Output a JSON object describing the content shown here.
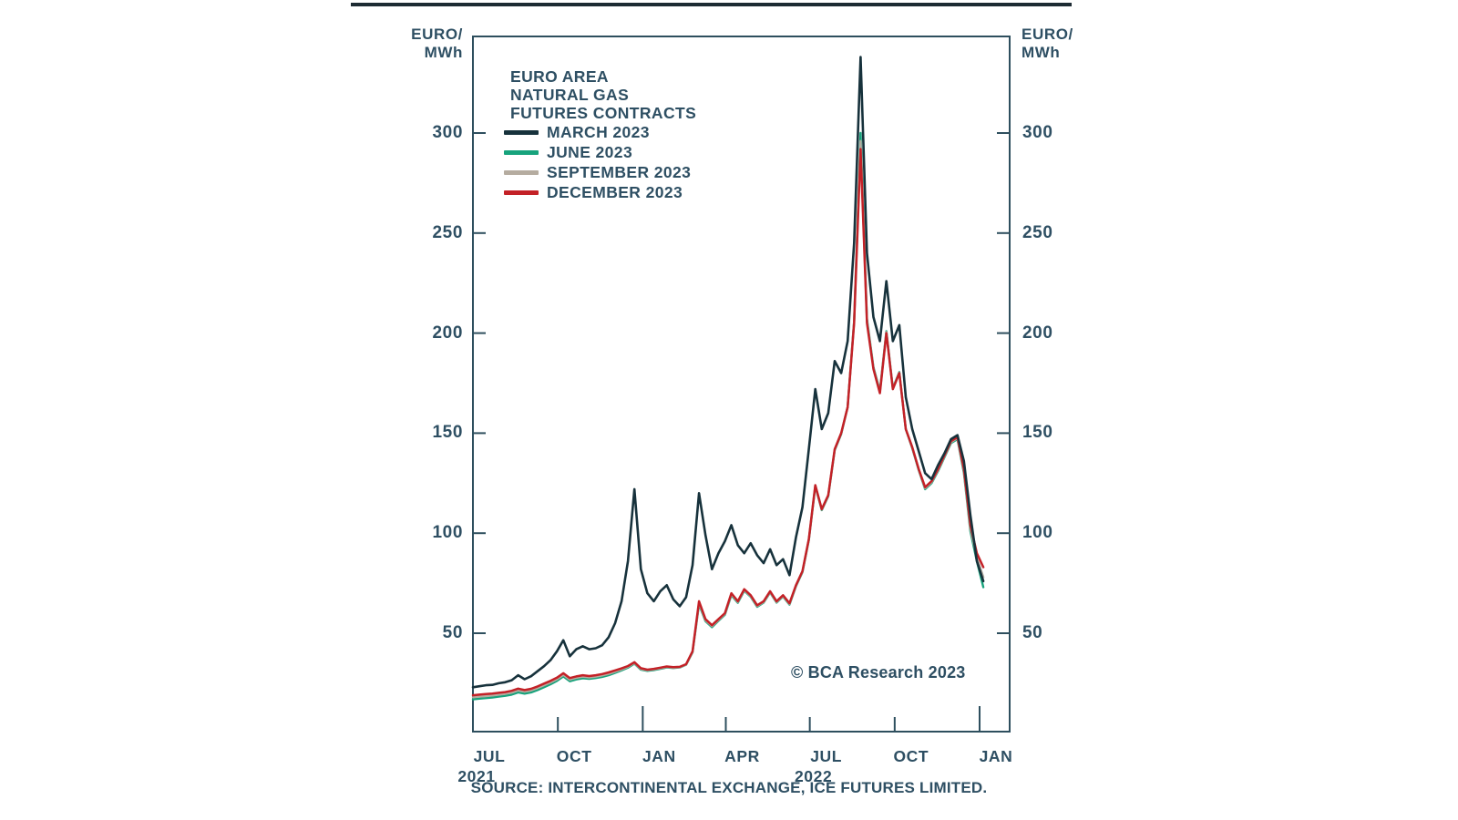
{
  "chart_data": {
    "type": "line",
    "title_lines": [
      "EURO AREA",
      "NATURAL GAS",
      "FUTURES CONTRACTS"
    ],
    "y_unit_line1": "EURO/",
    "y_unit_line2": "MWh",
    "y_ticks": [
      50,
      100,
      150,
      200,
      250,
      300
    ],
    "ylim": [
      0,
      348
    ],
    "x_range_days": [
      0,
      553
    ],
    "sample_interval_days": 7,
    "x_ticks": [
      {
        "label": "JUL",
        "day": 0,
        "major": false
      },
      {
        "label": "OCT",
        "day": 92,
        "major": false
      },
      {
        "label": "JAN",
        "day": 184,
        "major": true
      },
      {
        "label": "APR",
        "day": 274,
        "major": false
      },
      {
        "label": "JUL",
        "day": 365,
        "major": false
      },
      {
        "label": "OCT",
        "day": 457,
        "major": false
      },
      {
        "label": "JAN",
        "day": 549,
        "major": true
      }
    ],
    "year_labels": [
      {
        "text": "2021",
        "day": 0
      },
      {
        "text": "2022",
        "day": 365
      }
    ],
    "grid": false,
    "legend_position": "top-left-inside",
    "axis_color": "#2e4f5e",
    "text_color": "#2e4f63",
    "draw_order": [
      1,
      2,
      3,
      0
    ],
    "series": [
      {
        "name": "MARCH 2023",
        "color": "#17323c",
        "width": 2.6,
        "values": [
          23,
          23.5,
          24,
          24.2,
          25,
          25.5,
          26.5,
          29,
          27,
          28.5,
          31,
          33.5,
          36.5,
          41,
          46.5,
          38.5,
          42,
          43.5,
          42,
          42.5,
          44,
          48,
          55,
          66,
          86,
          122,
          82,
          70,
          66,
          71,
          74,
          67,
          63.5,
          68,
          84,
          120,
          99,
          82,
          90,
          96,
          104,
          94,
          90,
          95,
          89,
          85,
          92,
          84,
          87,
          79,
          98,
          113,
          142,
          172,
          152,
          160,
          186,
          180,
          196,
          245,
          338,
          240,
          208,
          196,
          226,
          196,
          204,
          168,
          152,
          141,
          130,
          127,
          134,
          140,
          147,
          149,
          136,
          109,
          86,
          76
        ]
      },
      {
        "name": "JUNE 2023",
        "color": "#17a37c",
        "width": 2.4,
        "values": [
          17,
          17.3,
          17.6,
          17.9,
          18.3,
          18.7,
          19.3,
          20.4,
          19.8,
          20.4,
          21.6,
          23,
          24.5,
          26.2,
          28.4,
          26,
          26.9,
          27.5,
          27.2,
          27.6,
          28.2,
          29,
          30.2,
          31.4,
          32.8,
          34.8,
          31.8,
          31.2,
          31.6,
          32.2,
          32.9,
          32.6,
          32.9,
          34.2,
          40.5,
          64.5,
          56,
          53,
          56.2,
          59.2,
          69,
          65.2,
          71.2,
          68.2,
          63.2,
          65.3,
          70.3,
          65.3,
          68.3,
          64.3,
          73.5,
          80.5,
          96.5,
          123.5,
          111.5,
          118.5,
          141.5,
          149.5,
          163,
          206,
          300,
          207,
          183,
          171,
          201,
          172.5,
          180.5,
          152,
          142.5,
          131.5,
          122,
          125,
          131,
          138,
          145,
          147,
          130,
          101,
          86,
          73
        ]
      },
      {
        "name": "SEPTEMBER 2023",
        "color": "#b5aca0",
        "width": 2.4,
        "values": [
          18,
          18.3,
          18.6,
          18.9,
          19.3,
          19.7,
          20.3,
          21.4,
          20.8,
          21.4,
          22.6,
          24,
          25.4,
          27,
          29.2,
          26.8,
          27.7,
          28.3,
          27.9,
          28.3,
          28.9,
          29.7,
          30.8,
          31.9,
          33.2,
          35.1,
          32.1,
          31.5,
          31.9,
          32.5,
          33.1,
          32.8,
          33,
          34.3,
          40.7,
          65.2,
          56.5,
          53.5,
          56.6,
          59.6,
          69.5,
          65.6,
          71.6,
          68.6,
          63.6,
          65.6,
          70.6,
          65.6,
          68.6,
          64.6,
          73.8,
          80.8,
          96.8,
          123.8,
          111.8,
          118.8,
          141.8,
          149.8,
          163.2,
          205.5,
          296,
          206,
          182.5,
          170.5,
          200.5,
          172.2,
          180.2,
          152,
          142.8,
          131.8,
          122.5,
          125.5,
          131.5,
          138.5,
          145.5,
          147.5,
          131,
          102.5,
          88,
          78
        ]
      },
      {
        "name": "DECEMBER 2023",
        "color": "#c32127",
        "width": 2.5,
        "values": [
          19,
          19.3,
          19.6,
          19.8,
          20.2,
          20.6,
          21.2,
          22.3,
          21.6,
          22.2,
          23.4,
          24.8,
          26.2,
          27.8,
          30,
          27.6,
          28.4,
          29,
          28.6,
          29,
          29.6,
          30.4,
          31.4,
          32.4,
          33.6,
          35.5,
          32.5,
          31.8,
          32.2,
          32.8,
          33.4,
          33,
          33.2,
          34.5,
          41,
          66,
          57,
          54,
          57,
          60,
          70,
          66,
          72,
          69,
          64,
          66,
          71,
          66,
          69,
          65,
          74,
          81,
          97,
          124,
          112,
          119,
          142,
          150,
          163,
          205,
          292,
          205,
          182,
          170,
          200,
          172,
          180,
          152,
          143,
          132,
          123,
          126,
          132,
          139,
          146,
          148,
          132,
          104,
          90,
          83
        ]
      }
    ],
    "copyright": "© BCA Research 2023",
    "source": "SOURCE: INTERCONTINENTAL EXCHANGE, ICE FUTURES LIMITED."
  }
}
